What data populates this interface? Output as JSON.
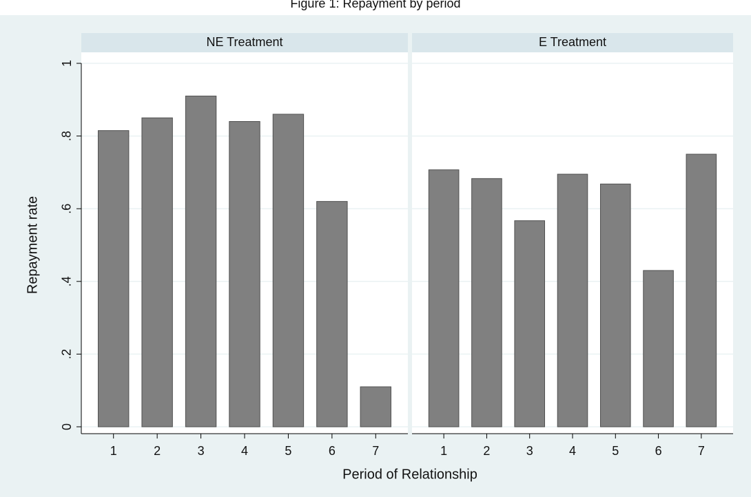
{
  "title": "Figure 1: Repayment by period",
  "x_label": "Period of Relationship",
  "y_label": "Repayment rate",
  "chart_data": [
    {
      "type": "bar",
      "title": "NE Treatment",
      "categories": [
        "1",
        "2",
        "3",
        "4",
        "5",
        "6",
        "7"
      ],
      "values": [
        0.815,
        0.85,
        0.91,
        0.84,
        0.86,
        0.62,
        0.11
      ],
      "color": "#808080",
      "ylim": [
        0,
        1
      ],
      "yticks": [
        0,
        {
          "value": 0.2,
          "label": ".2"
        },
        {
          "value": 0.4,
          "label": ".4"
        },
        {
          "value": 0.6,
          "label": ".6"
        },
        {
          "value": 0.8,
          "label": ".8"
        },
        1
      ],
      "grid": true
    },
    {
      "type": "bar",
      "title": "E Treatment",
      "categories": [
        "1",
        "2",
        "3",
        "4",
        "5",
        "6",
        "7"
      ],
      "values": [
        0.707,
        0.683,
        0.567,
        0.695,
        0.668,
        0.43,
        0.75
      ],
      "color": "#808080",
      "ylim": [
        0,
        1
      ],
      "yticks": [
        0,
        0.2,
        0.4,
        0.6,
        0.8,
        1
      ],
      "grid": true
    }
  ]
}
